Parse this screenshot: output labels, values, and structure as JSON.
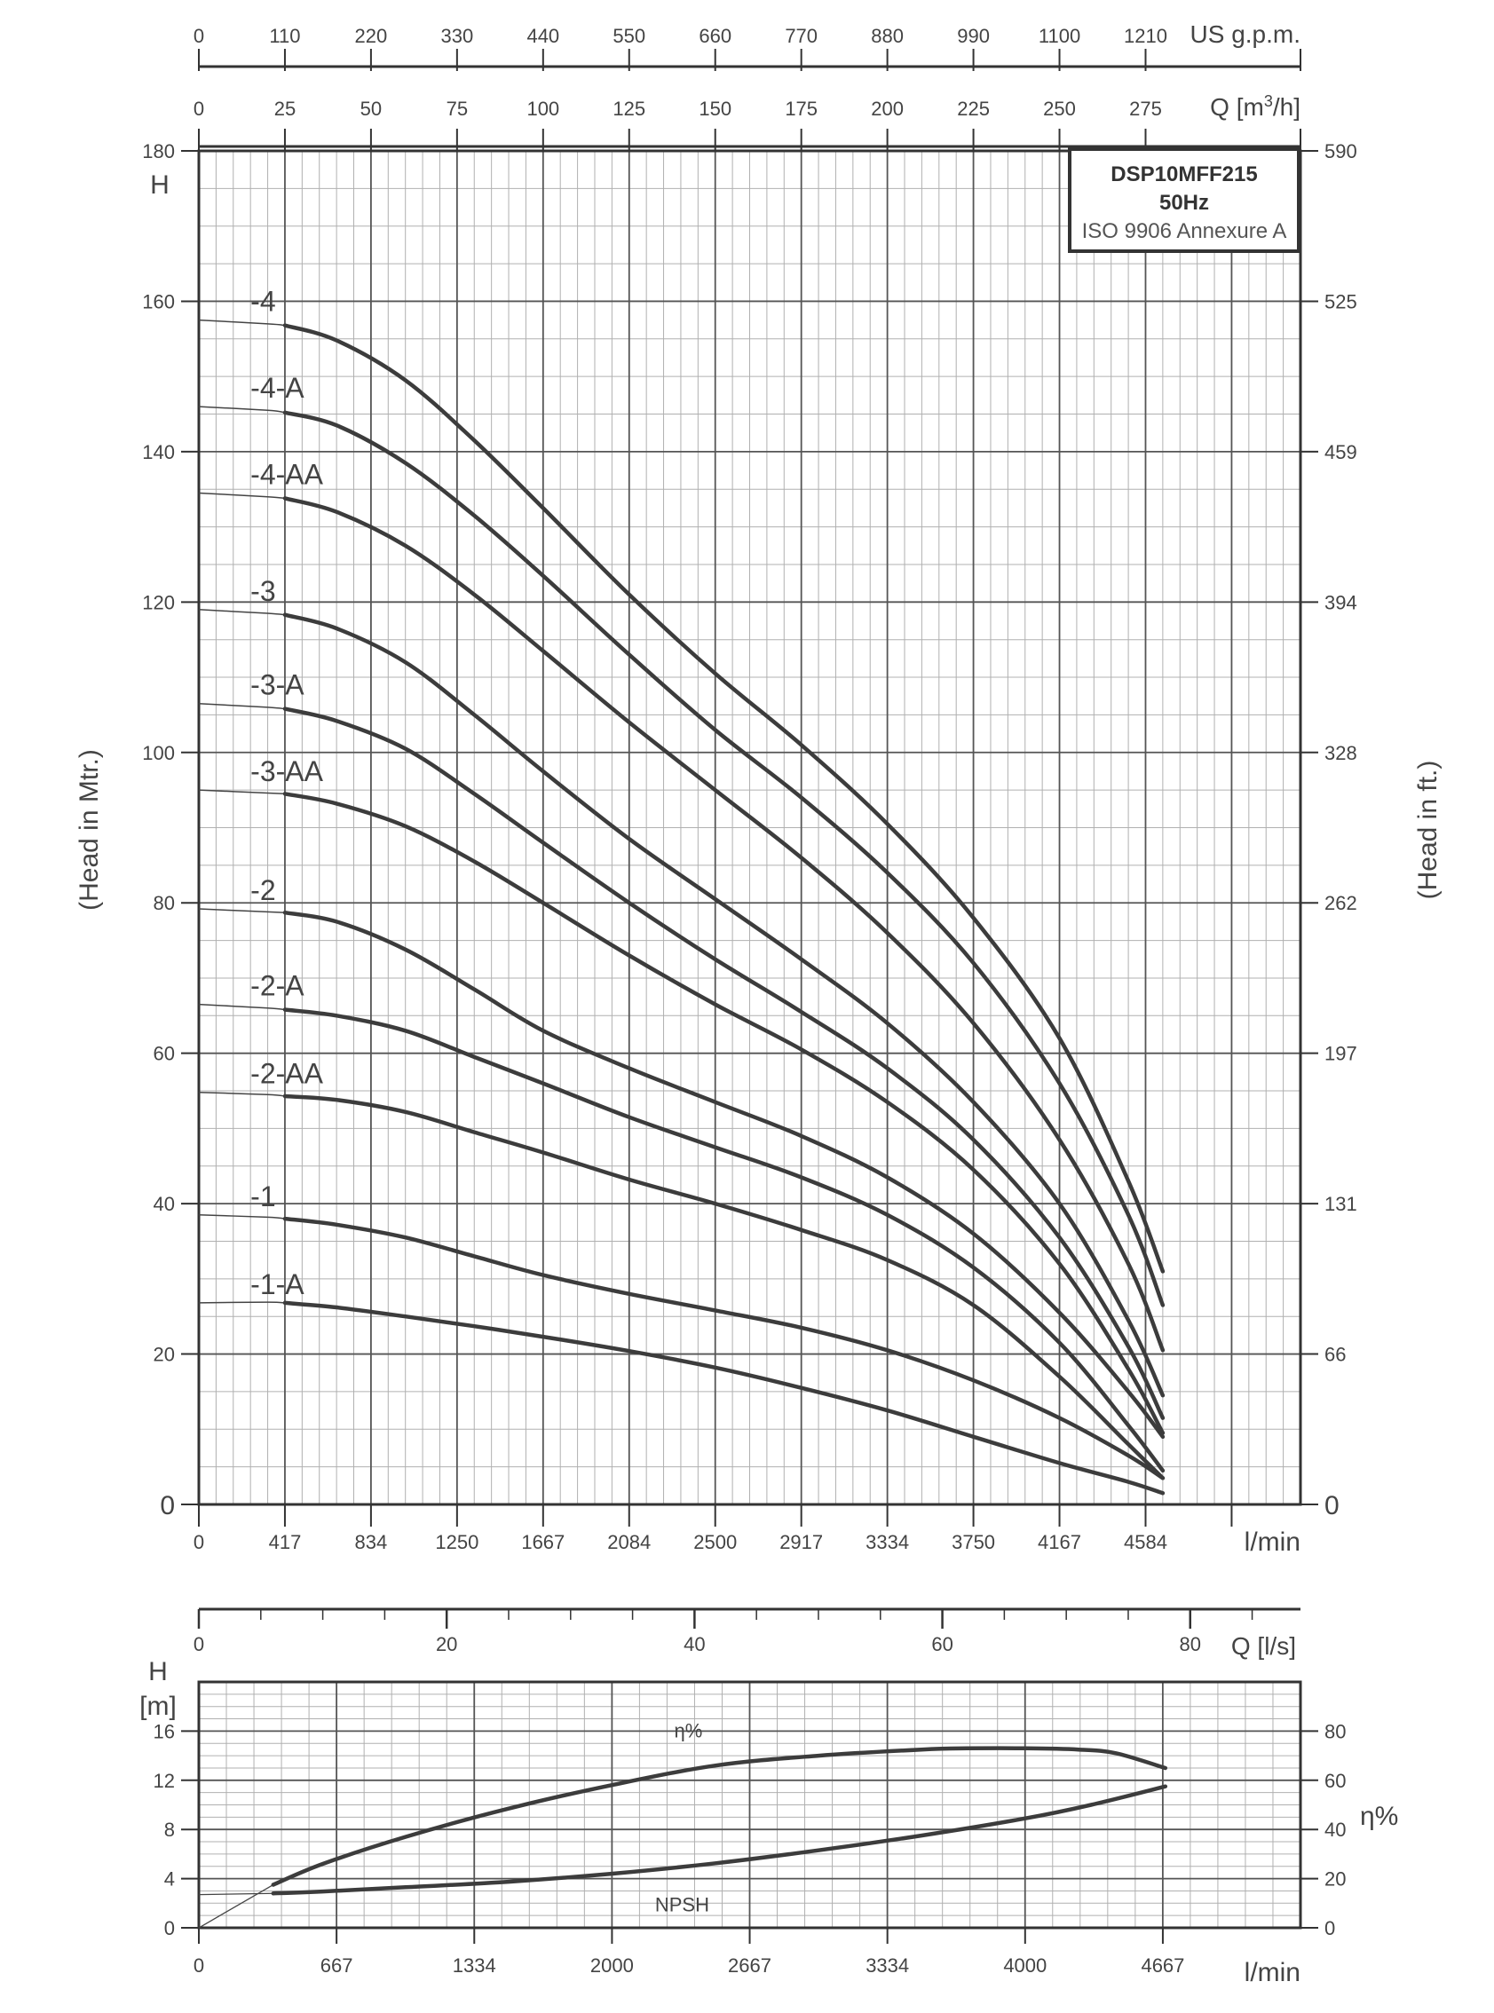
{
  "chart_data": [
    {
      "type": "line",
      "title": "DSP10MFF215",
      "subtitle_lines": [
        "50Hz",
        "ISO 9906 Annexure A"
      ],
      "ylabel": "(Head in Mtr.)",
      "ylabel_right": "(Head in ft.)",
      "y_name": "H",
      "ylim": [
        0,
        180
      ],
      "y_ticks": [
        "0",
        "20",
        "40",
        "60",
        "80",
        "100",
        "120",
        "140",
        "160",
        "180"
      ],
      "y_right_ticks": [
        "0",
        "66",
        "131",
        "197",
        "262",
        "328",
        "394",
        "459",
        "525",
        "590"
      ],
      "x_unit": "Q [m³/h]",
      "x_unit_base": "Q [m",
      "x_unit_sup": "3",
      "x_unit_tail": "/h]",
      "xlim": [
        0,
        320
      ],
      "x_ticks": [
        "0",
        "25",
        "50",
        "75",
        "100",
        "125",
        "150",
        "175",
        "200",
        "225",
        "250",
        "275"
      ],
      "x_gpm_unit": "US g.p.m.",
      "x_gpm_ticks": [
        "0",
        "110",
        "220",
        "330",
        "440",
        "550",
        "660",
        "770",
        "880",
        "990",
        "1100",
        "1210"
      ],
      "x_lmin_unit": "l/min",
      "x_lmin_ticks": [
        "0",
        "417",
        "834",
        "1250",
        "1667",
        "2084",
        "2500",
        "2917",
        "3334",
        "3750",
        "4167",
        "4584"
      ],
      "grid": true,
      "series": [
        {
          "name": "-4",
          "x": [
            0,
            20,
            25,
            40,
            60,
            80,
            100,
            125,
            150,
            175,
            200,
            225,
            250,
            270,
            280
          ],
          "y": [
            157.5,
            157,
            156.8,
            154.8,
            149.5,
            141.5,
            132.5,
            121,
            110.5,
            101,
            90.5,
            78,
            62,
            43,
            31
          ]
        },
        {
          "name": "-4-A",
          "x": [
            0,
            20,
            25,
            40,
            60,
            80,
            100,
            125,
            150,
            175,
            200,
            225,
            250,
            270,
            280
          ],
          "y": [
            146,
            145.5,
            145.2,
            143.5,
            138.5,
            131.5,
            123.5,
            113,
            103,
            94,
            84,
            72,
            56,
            38.5,
            26.5
          ]
        },
        {
          "name": "-4-AA",
          "x": [
            0,
            20,
            25,
            40,
            60,
            80,
            100,
            125,
            150,
            175,
            200,
            225,
            250,
            270,
            280
          ],
          "y": [
            134.5,
            134,
            133.8,
            132,
            127.5,
            121,
            113.5,
            104,
            95,
            86,
            76,
            64,
            48.5,
            32,
            20.5
          ]
        },
        {
          "name": "-3",
          "x": [
            0,
            20,
            25,
            40,
            60,
            80,
            100,
            125,
            150,
            175,
            200,
            225,
            250,
            270,
            280
          ],
          "y": [
            119,
            118.5,
            118.3,
            116.5,
            112,
            105,
            97.5,
            88.5,
            80.5,
            72.5,
            64,
            53.5,
            40,
            24.5,
            14.5
          ]
        },
        {
          "name": "-3-A",
          "x": [
            0,
            20,
            25,
            40,
            60,
            80,
            100,
            125,
            150,
            175,
            200,
            225,
            250,
            270,
            280
          ],
          "y": [
            106.5,
            106,
            105.8,
            104.2,
            100.5,
            94.5,
            88,
            80,
            72.5,
            65.5,
            58,
            48.5,
            35.5,
            21,
            11.5
          ]
        },
        {
          "name": "-3-AA",
          "x": [
            0,
            20,
            25,
            40,
            60,
            80,
            100,
            125,
            150,
            175,
            200,
            225,
            250,
            270,
            280
          ],
          "y": [
            95,
            94.6,
            94.5,
            93.2,
            90.2,
            85.5,
            80,
            73,
            66.5,
            60.5,
            53.5,
            44.5,
            32,
            18,
            9.5
          ]
        },
        {
          "name": "-2",
          "x": [
            0,
            20,
            25,
            40,
            60,
            80,
            100,
            125,
            150,
            175,
            200,
            225,
            250,
            270,
            280
          ],
          "y": [
            79.2,
            78.8,
            78.7,
            77.5,
            73.8,
            68.5,
            63,
            58,
            53.5,
            49,
            43.5,
            36,
            25.5,
            15,
            9
          ]
        },
        {
          "name": "-2-A",
          "x": [
            0,
            20,
            25,
            40,
            60,
            80,
            100,
            125,
            150,
            175,
            200,
            225,
            250,
            270,
            280
          ],
          "y": [
            66.5,
            66,
            65.8,
            65,
            63,
            59.5,
            56,
            51.5,
            47.5,
            43.5,
            38.5,
            31.5,
            21.5,
            10.5,
            4.5
          ]
        },
        {
          "name": "-2-AA",
          "x": [
            0,
            20,
            25,
            40,
            60,
            80,
            100,
            125,
            150,
            175,
            200,
            225,
            250,
            270,
            280
          ],
          "y": [
            54.8,
            54.5,
            54.3,
            53.8,
            52.2,
            49.5,
            46.8,
            43.2,
            40,
            36.5,
            32.5,
            26.5,
            17,
            8,
            3.5
          ]
        },
        {
          "name": "-1",
          "x": [
            0,
            20,
            25,
            40,
            60,
            80,
            100,
            125,
            150,
            175,
            200,
            225,
            250,
            270,
            280
          ],
          "y": [
            38.5,
            38.2,
            38,
            37.2,
            35.5,
            33,
            30.5,
            28,
            25.8,
            23.5,
            20.5,
            16.5,
            11.5,
            6.5,
            3.5
          ]
        },
        {
          "name": "-1-A",
          "x": [
            0,
            20,
            25,
            40,
            60,
            80,
            100,
            125,
            150,
            175,
            200,
            225,
            250,
            270,
            280
          ],
          "y": [
            26.8,
            26.9,
            26.8,
            26.2,
            25,
            23.7,
            22.3,
            20.4,
            18.2,
            15.5,
            12.5,
            9,
            5.5,
            3,
            1.5
          ]
        }
      ]
    },
    {
      "type": "line",
      "title": "",
      "x_unit": "Q [l/s]",
      "xlim": [
        0,
        88.9
      ],
      "x_ticks": [
        "0",
        "20",
        "40",
        "60",
        "80"
      ],
      "x_lmin_unit": "l/min",
      "x_lmin_ticks": [
        "0",
        "667",
        "1334",
        "2000",
        "2667",
        "3334",
        "4000",
        "4667"
      ],
      "ylabel": "H\n[m]",
      "ylabel_line1": "H",
      "ylabel_line2": "[m]",
      "ylim": [
        0,
        20
      ],
      "y_ticks": [
        "0",
        "4",
        "8",
        "12",
        "16"
      ],
      "y_right_label": "η%",
      "y_right_lim": [
        0,
        100
      ],
      "y_right_ticks": [
        "0",
        "20",
        "40",
        "60",
        "80"
      ],
      "grid": true,
      "series": [
        {
          "name": "η%",
          "axis": "right",
          "label": "η%",
          "x": [
            6,
            10,
            16.7,
            25,
            33.3,
            41.7,
            50,
            58.3,
            62,
            66.7,
            71,
            74,
            78
          ],
          "y": [
            17.5,
            26,
            37,
            48.5,
            58,
            66,
            70,
            72.5,
            73,
            73,
            72.5,
            71,
            65
          ]
        },
        {
          "name": "NPSH",
          "axis": "left",
          "label": "NPSH",
          "x": [
            6,
            10,
            16.7,
            25,
            33.3,
            41.7,
            50,
            58.3,
            66.7,
            72,
            78
          ],
          "y": [
            2.8,
            2.95,
            3.3,
            3.75,
            4.4,
            5.25,
            6.3,
            7.5,
            8.9,
            10,
            11.5
          ]
        }
      ]
    }
  ]
}
